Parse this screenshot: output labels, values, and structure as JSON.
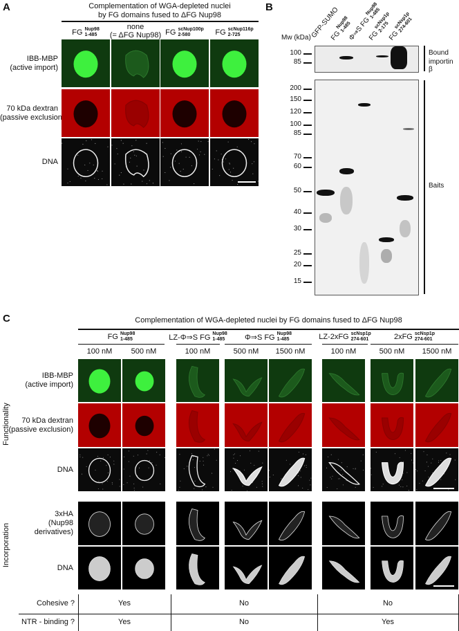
{
  "panel_a": {
    "letter": "A",
    "title_line1": "Complementation of WGA-depleted nuclei",
    "title_line2": "by FG domains fused to ΔFG Nup98",
    "columns": [
      {
        "main": "FG",
        "sup": "Nup98",
        "sub": "1-485"
      },
      {
        "main": "none",
        "main2": "(= ΔFG Nup98)"
      },
      {
        "main": "FG",
        "sup": "scNup100p",
        "sub": "2-580"
      },
      {
        "main": "FG",
        "sup": "scNup116p",
        "sub": "2-725"
      }
    ],
    "rows": [
      {
        "line1": "IBB-MBP",
        "line2": "(active import)"
      },
      {
        "line1": "70 kDa dextran",
        "line2": "(passive exclusion)"
      },
      {
        "line1": "DNA"
      }
    ]
  },
  "panel_b": {
    "letter": "B",
    "mw_label": "Mw (kDa)",
    "lanes": [
      {
        "main": "GFP-SUMO"
      },
      {
        "main": "FG",
        "sup": "Nup98",
        "sub": "1-485"
      },
      {
        "main": "Φ⇒S FG",
        "sup": "Nup98",
        "sub": "1-485"
      },
      {
        "main": "FG",
        "sup": "scNsp1p",
        "sub": "2-175"
      },
      {
        "main": "FG",
        "sup": "scNsp1p",
        "sub": "274-601"
      }
    ],
    "top_markers": [
      "100",
      "85"
    ],
    "bottom_markers": [
      "200",
      "150",
      "120",
      "100",
      "85",
      "70",
      "60",
      "50",
      "40",
      "30",
      "25",
      "20",
      "15"
    ],
    "bound_label_line1": "Bound",
    "bound_label_line2": "importin β",
    "baits_label": "Baits"
  },
  "panel_c": {
    "letter": "C",
    "title": "Complementation of WGA-depleted nuclei by FG domains fused to ΔFG Nup98",
    "groups": [
      {
        "main": "FG",
        "sup": "Nup98",
        "sub": "1-485"
      },
      {
        "main": "LZ-Φ⇒S FG",
        "sup": "Nup98",
        "sub": "1-485"
      },
      {
        "main": "Φ⇒S FG",
        "sup": "Nup98",
        "sub": "1-485"
      },
      {
        "main": "LZ-2xFG",
        "sup": "scNsp1p",
        "sub": "274-601"
      },
      {
        "main": "2xFG",
        "sup": "scNsp1p",
        "sub": "274-601"
      }
    ],
    "concentrations": [
      "100 nM",
      "500 nM",
      "100 nM",
      "500 nM",
      "1500 nM",
      "100 nM",
      "500 nM",
      "1500 nM"
    ],
    "section_functionality": "Functionality",
    "section_incorporation": "Incorporation",
    "rows": [
      {
        "line1": "IBB-MBP",
        "line2": "(active import)"
      },
      {
        "line1": "70 kDa dextran",
        "line2": "(passive exclusion)"
      },
      {
        "line1": "DNA"
      },
      {
        "line1": "3xHA",
        "line2": "(Nup98",
        "line3": "derivatives)"
      },
      {
        "line1": "DNA"
      }
    ],
    "summary": {
      "cohesive_label": "Cohesive ?",
      "ntr_label": "NTR - binding ?",
      "cohesive": [
        "Yes",
        "No",
        "No"
      ],
      "ntr": [
        "Yes",
        "No",
        "Yes"
      ]
    }
  },
  "colors": {
    "green_bg": "#0f3a0f",
    "green_signal": "#3ef03e",
    "red_bg": "#b30000",
    "red_dark": "#1e0000",
    "dna_bg": "#0b0b0b"
  }
}
